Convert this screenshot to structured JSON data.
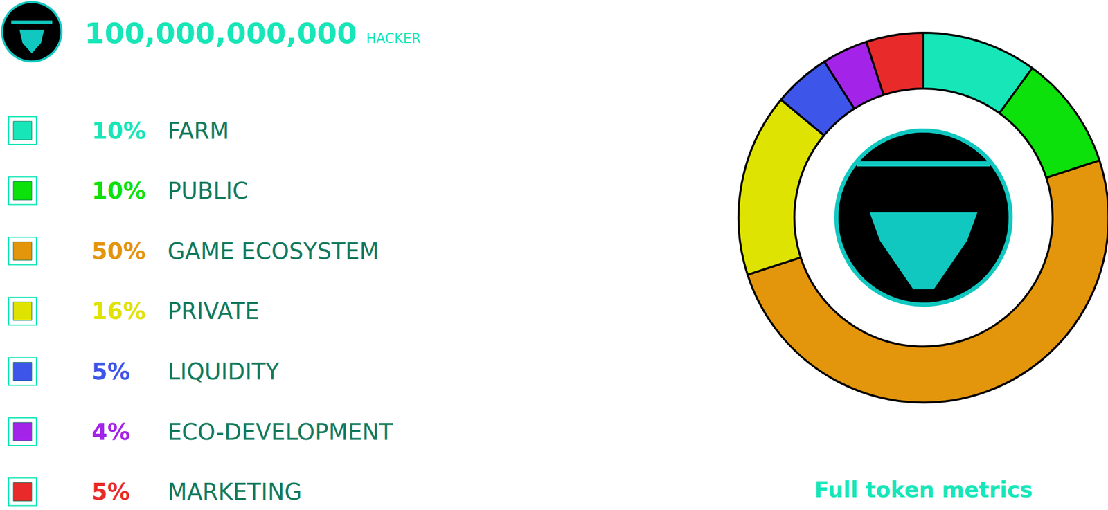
{
  "chart_data": {
    "type": "pie",
    "title": "100,000,000,000",
    "subtitle": "HACKER",
    "annotation": "Full token metrics",
    "categories": [
      "FARM",
      "PUBLIC",
      "GAME ECOSYSTEM",
      "PRIVATE",
      "LIQUIDITY",
      "ECO-DEVELOPMENT",
      "MARKETING"
    ],
    "values": [
      10,
      10,
      50,
      16,
      5,
      4,
      5
    ],
    "value_labels": [
      "10%",
      "10%",
      "50%",
      "16%",
      "5%",
      "4%",
      "5%"
    ],
    "colors": [
      "#17e6b8",
      "#0ce10c",
      "#e3950c",
      "#dfe302",
      "#3d55e8",
      "#a324e8",
      "#e82a2a"
    ],
    "legend": "left",
    "data_labels": false
  }
}
